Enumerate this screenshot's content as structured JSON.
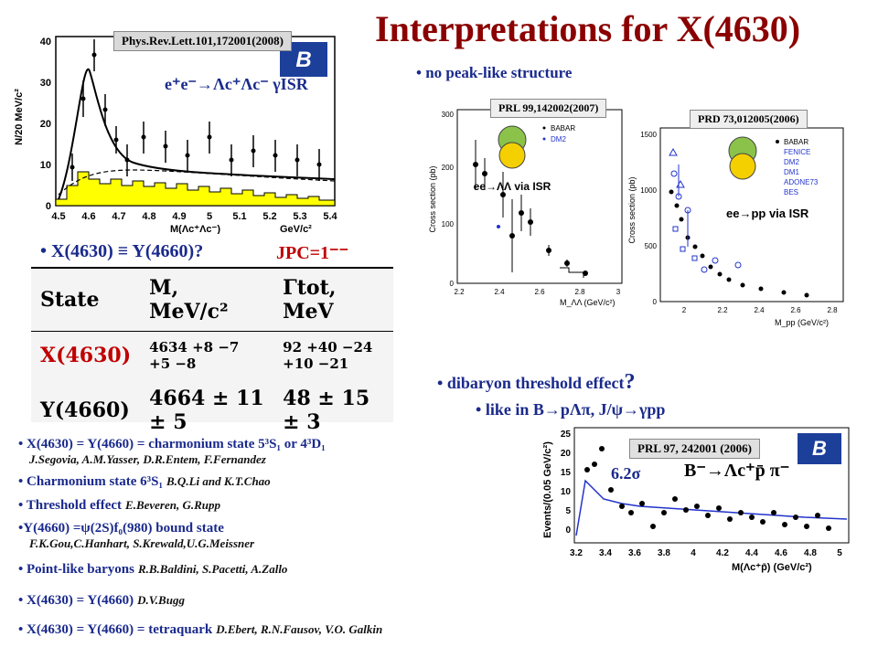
{
  "title": "Interpretations  for X(4630)",
  "top_left_plot": {
    "citation": "Phys.Rev.Lett.101,172001(2008)",
    "reaction": "e⁺e⁻→Λc⁺Λc⁻ γISR",
    "ylabel": "N/20 MeV/c²",
    "xlabel": "M(Λc⁺Λc⁻)",
    "xunit": "GeV/c²",
    "xticks": [
      "4.5",
      "4.6",
      "4.7",
      "4.8",
      "4.9",
      "5",
      "5.1",
      "5.2",
      "5.3",
      "5.4"
    ],
    "yticks": [
      "0",
      "10",
      "20",
      "30",
      "40"
    ]
  },
  "no_peak": "no peak-like structure",
  "babar_plot_1": {
    "citation": "PRL 99,142002(2007)",
    "legend": [
      "BABAR",
      "DM2"
    ],
    "reaction": "ee→ΛΛ via ISR",
    "ylabel": "Cross section (pb)",
    "xlabel": "M_ΛΛ (GeV/c²)",
    "xticks": [
      "2.2",
      "2.4",
      "2.6",
      "2.8",
      "3"
    ],
    "yticks": [
      "0",
      "100",
      "200",
      "300"
    ]
  },
  "babar_plot_2": {
    "citation": "PRD 73,012005(2006)",
    "legend": [
      "BABAR",
      "FENICE",
      "DM2",
      "DM1",
      "ADONE73",
      "BES"
    ],
    "reaction": "ee→pp via ISR",
    "ylabel": "Cross section (pb)",
    "xlabel": "M_pp (GeV/c²)",
    "xticks": [
      "2",
      "2.2",
      "2.4",
      "2.6",
      "2.8"
    ],
    "yticks": [
      "0",
      "500",
      "1000",
      "1500"
    ]
  },
  "x_eq_y": "X(4630) ≡ Y(4660)?",
  "jpc": "JPC=1⁻⁻",
  "table": {
    "headers": [
      "State",
      "M,  MeV/c²",
      "Γtot,  MeV"
    ],
    "rows": [
      {
        "state": "X(4630)",
        "mass": "4634 +8 −7 +5 −8",
        "width": "92 +40 −24 +10 −21"
      },
      {
        "state": "Y(4660)",
        "mass": "4664 ± 11 ± 5",
        "width": "48 ± 15 ± 3"
      }
    ]
  },
  "dibaryon": "dibaryon threshold effect",
  "like_in": "like in  B→pΛπ, J/ψ→γpp",
  "belle_plot": {
    "citation": "PRL 97, 242001 (2006)",
    "reaction": "B⁻→Λc⁺p̄ π⁻",
    "significance": "6.2σ",
    "ylabel": "Events/(0.05 GeV/c²)",
    "xlabel": "M(Λc⁺p̄) (GeV/c²)",
    "xticks": [
      "3.2",
      "3.4",
      "3.6",
      "3.8",
      "4",
      "4.2",
      "4.4",
      "4.6",
      "4.8",
      "5"
    ],
    "yticks": [
      "0",
      "5",
      "10",
      "15",
      "20",
      "25"
    ]
  },
  "interpretations": [
    {
      "text": "X(4630) = Y(4660) = charmonium state 5³S₁ or 4³D₁",
      "authors": "J.Segovia, A.M.Yasser, D.R.Entem, F.Fernandez"
    },
    {
      "text": "Charmonium state 6³S₁",
      "authors": "B.Q.Li and K.T.Chao"
    },
    {
      "text": "Threshold effect",
      "authors": "E.Beveren, G.Rupp"
    },
    {
      "text": "Y(4660) =ψ(2S)f₀(980) bound state",
      "authors": "F.K.Gou,C.Hanhart, S.Krewald,U.G.Meissner"
    },
    {
      "text": "Point-like baryons",
      "authors": "R.B.Baldini, S.Pacetti, A.Zallo"
    },
    {
      "text": "X(4630) = Y(4660)",
      "authors": "D.V.Bugg"
    },
    {
      "text": "X(4630) = Y(4660) = tetraquark",
      "authors": "D.Ebert, R.N.Fausov, V.O. Galkin"
    }
  ],
  "colors": {
    "title": "#8b0000",
    "bullet_text": "#1a2a8c",
    "highlight": "#c00000",
    "fill": "#ffff00"
  }
}
